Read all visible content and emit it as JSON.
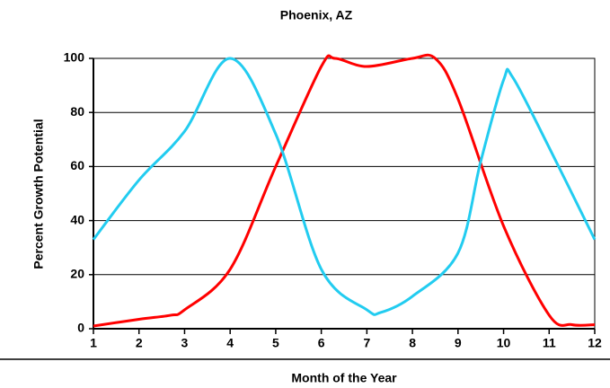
{
  "chart_data": {
    "type": "line",
    "title": "Phoenix, AZ",
    "xlabel": "Month of the Year",
    "ylabel": "Percent Growth Potential",
    "xlim": [
      1,
      12
    ],
    "xticks": [
      1,
      2,
      3,
      4,
      5,
      6,
      7,
      8,
      9,
      10,
      11,
      12
    ],
    "ylim": [
      0,
      100
    ],
    "yticks": [
      0,
      20,
      40,
      60,
      80,
      100
    ],
    "grid": true,
    "series": [
      {
        "color": "#ff0000",
        "x": [
          1,
          2,
          2.7,
          3,
          4,
          5,
          6,
          6.3,
          7,
          8,
          8.5,
          9,
          10,
          11,
          11.5,
          12
        ],
        "values": [
          1,
          3.5,
          5,
          7,
          22,
          60,
          97,
          100,
          97,
          100,
          100,
          85,
          38,
          5,
          1.5,
          1.5
        ]
      },
      {
        "color": "#22ccf0",
        "x": [
          1,
          2,
          3,
          4,
          5,
          6,
          7,
          7.3,
          8,
          9,
          9.5,
          10,
          10.2,
          11,
          12
        ],
        "values": [
          33,
          55,
          73,
          100,
          72,
          22,
          7,
          6,
          12,
          28,
          62,
          92,
          93,
          67,
          33
        ]
      }
    ]
  }
}
